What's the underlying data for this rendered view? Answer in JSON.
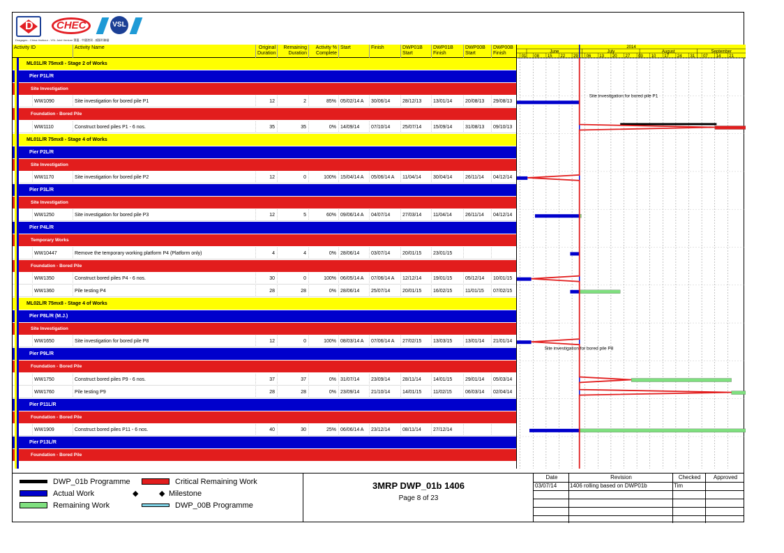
{
  "logos": {
    "d_letter": "D",
    "chec": "CHEC",
    "vsl": "VSL",
    "tagline": "Dragages - China Harbour - VSL Joint Venture 寶嘉 - 中國港灣 - 威勝利聯營"
  },
  "columns": {
    "activity_id": "Activity ID",
    "activity_name": "Activity Name",
    "orig_dur": "Original\nDuration",
    "rem_dur": "Remaining\nDuration",
    "pct": "Activity %\nComplete",
    "start": "Start",
    "finish": "Finish",
    "dwp01b_start": "DWP01B\nStart",
    "dwp01b_finish": "DWP01B\nFinish",
    "dwp00b_start": "DWP00B\nStart",
    "dwp00b_finish": "DWP00B\nFinish"
  },
  "timeline": {
    "year": "2014",
    "months": [
      "June",
      "July",
      "August",
      "September"
    ],
    "days": [
      "01",
      "08",
      "15",
      "22",
      "29",
      "06",
      "13",
      "20",
      "27",
      "03",
      "10",
      "17",
      "24",
      "31",
      "07",
      "14",
      "21"
    ]
  },
  "rows": [
    {
      "type": "g1",
      "label": "ML01L/R 75mx8 - Stage 2 of Works"
    },
    {
      "type": "g2",
      "label": "Pier P1L/R"
    },
    {
      "type": "g3",
      "label": "Site Investigation"
    },
    {
      "type": "act",
      "id": "WW1090",
      "name": "Site investigation for bored pile P1",
      "od": "12",
      "rd": "2",
      "pct": "85%",
      "start": "05/02/14 A",
      "finish": "30/06/14",
      "s1": "28/12/13",
      "f1": "13/01/14",
      "s0": "20/08/13",
      "f0": "29/08/13"
    },
    {
      "type": "g3",
      "label": "Foundation - Bored Pile"
    },
    {
      "type": "act",
      "id": "WW1110",
      "name": "Construct bored piles P1 - 6 nos.",
      "od": "35",
      "rd": "35",
      "pct": "0%",
      "start": "14/09/14",
      "finish": "07/10/14",
      "s1": "25/07/14",
      "f1": "15/09/14",
      "s0": "31/08/13",
      "f0": "09/10/13"
    },
    {
      "type": "g1",
      "label": "ML01L/R 75mx8 - Stage 4 of Works"
    },
    {
      "type": "g2",
      "label": "Pier P2L/R"
    },
    {
      "type": "g3",
      "label": "Site Investigation"
    },
    {
      "type": "act",
      "id": "WW1170",
      "name": "Site investigation for bored pile P2",
      "od": "12",
      "rd": "0",
      "pct": "100%",
      "start": "15/04/14 A",
      "finish": "05/06/14 A",
      "s1": "11/04/14",
      "f1": "30/04/14",
      "s0": "26/11/14",
      "f0": "04/12/14"
    },
    {
      "type": "g2",
      "label": "Pier P3L/R"
    },
    {
      "type": "g3",
      "label": "Site Investigation"
    },
    {
      "type": "act",
      "id": "WW1250",
      "name": "Site investigation for bored pile P3",
      "od": "12",
      "rd": "5",
      "pct": "60%",
      "start": "09/06/14 A",
      "finish": "04/07/14",
      "s1": "27/03/14",
      "f1": "11/04/14",
      "s0": "26/11/14",
      "f0": "04/12/14"
    },
    {
      "type": "g2",
      "label": "Pier P4L/R"
    },
    {
      "type": "g3",
      "label": "Temporary Works"
    },
    {
      "type": "act",
      "id": "WW10447",
      "name": "Remove the temporary working platform P4 (Platform only)",
      "od": "4",
      "rd": "4",
      "pct": "0%",
      "start": "28/06/14",
      "finish": "03/07/14",
      "s1": "20/01/15",
      "f1": "23/01/15",
      "s0": "",
      "f0": ""
    },
    {
      "type": "g3",
      "label": "Foundation - Bored Pile"
    },
    {
      "type": "act",
      "id": "WW1350",
      "name": "Construct bored piles P4 - 6 nos.",
      "od": "30",
      "rd": "0",
      "pct": "100%",
      "start": "06/05/14 A",
      "finish": "07/06/14 A",
      "s1": "12/12/14",
      "f1": "19/01/15",
      "s0": "05/12/14",
      "f0": "10/01/15"
    },
    {
      "type": "act",
      "id": "WW1360",
      "name": "Pile testing P4",
      "od": "28",
      "rd": "28",
      "pct": "0%",
      "start": "28/06/14",
      "finish": "25/07/14",
      "s1": "20/01/15",
      "f1": "16/02/15",
      "s0": "11/01/15",
      "f0": "07/02/15"
    },
    {
      "type": "g1",
      "label": "ML02L/R 75mx8 - Stage 4 of Works"
    },
    {
      "type": "g2",
      "label": "Pier P8L/R (M.J.)"
    },
    {
      "type": "g3",
      "label": "Site Investigation"
    },
    {
      "type": "act",
      "id": "WW1650",
      "name": "Site investigation for bored pile P8",
      "od": "12",
      "rd": "0",
      "pct": "100%",
      "start": "08/03/14 A",
      "finish": "07/06/14 A",
      "s1": "27/02/15",
      "f1": "13/03/15",
      "s0": "13/01/14",
      "f0": "21/01/14"
    },
    {
      "type": "g2",
      "label": "Pier P9L/R"
    },
    {
      "type": "g3",
      "label": "Foundation - Bored Pile"
    },
    {
      "type": "act",
      "id": "WW1750",
      "name": "Construct bored piles P9 - 6 nos.",
      "od": "37",
      "rd": "37",
      "pct": "0%",
      "start": "31/07/14",
      "finish": "23/09/14",
      "s1": "28/11/14",
      "f1": "14/01/15",
      "s0": "29/01/14",
      "f0": "05/03/14"
    },
    {
      "type": "act",
      "id": "WW1760",
      "name": "Pile testing P9",
      "od": "28",
      "rd": "28",
      "pct": "0%",
      "start": "23/09/14",
      "finish": "21/10/14",
      "s1": "14/01/15",
      "f1": "11/02/15",
      "s0": "06/03/14",
      "f0": "02/04/14"
    },
    {
      "type": "g2",
      "label": "Pier P11L/R"
    },
    {
      "type": "g3",
      "label": "Foundation - Bored Pile"
    },
    {
      "type": "act",
      "id": "WW1909",
      "name": "Construct bored piles P11 - 6 nos.",
      "od": "40",
      "rd": "30",
      "pct": "25%",
      "start": "06/06/14 A",
      "finish": "23/12/14",
      "s1": "08/11/14",
      "f1": "27/12/14",
      "s0": "",
      "f0": ""
    },
    {
      "type": "g2",
      "label": "Pier P13L/R"
    },
    {
      "type": "g3",
      "label": "Foundation - Bored Pile"
    }
  ],
  "gantt_labels": [
    {
      "row": 3,
      "text": "Site investigation for bored pile P1"
    },
    {
      "row": 23,
      "text": "Site investigation for bored pile P8"
    }
  ],
  "legend": {
    "dwp01b": "DWP_01b Programme",
    "critical": "Critical Remaining Work",
    "actual": "Actual Work",
    "milestone": "Milestone",
    "remaining": "Remaining Work",
    "dwp00b": "DWP_00B Programme"
  },
  "colors": {
    "dwp01b": "#000000",
    "critical": "#e21d1d",
    "actual": "#0000cc",
    "remaining": "#7fe07f",
    "dwp00b": "#7fd4e8",
    "group1": "#ffff00",
    "group2": "#0000cc",
    "group3": "#e21d1d"
  },
  "title": {
    "main": "3MRP DWP_01b 1406",
    "page": "Page 8 of 23"
  },
  "revision": {
    "headers": [
      "Date",
      "Revision",
      "Checked",
      "Approved"
    ],
    "rows": [
      {
        "date": "03/07/14",
        "rev": "1406 rolling based on DWP01b",
        "checked": "Tim",
        "approved": ""
      }
    ]
  }
}
